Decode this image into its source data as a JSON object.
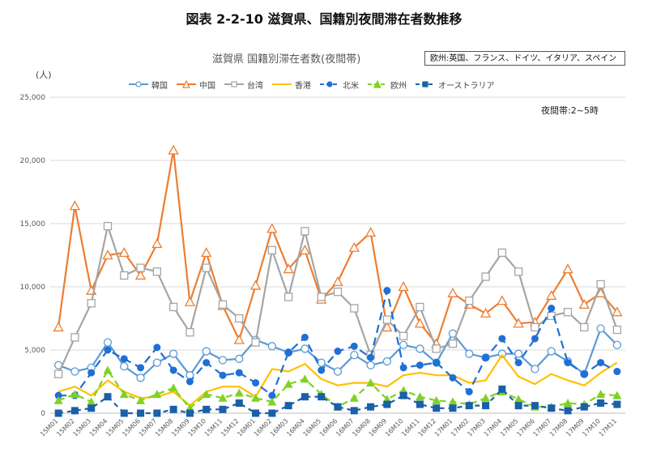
{
  "page_title": "図表 2-2-10 滋賀県、国籍別夜間滞在者数推移",
  "chart_data": {
    "type": "line",
    "title": "滋賀県 国籍別滞在者数(夜間帯)",
    "note": "欧州:英国、フランス、ドイツ、イタリア、スペイン",
    "time_note": "夜間帯:2~5時",
    "ylabel": "(人)",
    "ylim": [
      0,
      25000
    ],
    "yticks": [
      "0",
      "5,000",
      "10,000",
      "15,000",
      "20,000",
      "25,000"
    ],
    "grid": true,
    "legend_position": "top",
    "categories": [
      "15M01",
      "15M02",
      "15M03",
      "15M04",
      "15M05",
      "15M06",
      "15M07",
      "15M08",
      "15M09",
      "15M10",
      "15M11",
      "15M12",
      "16M01",
      "16M02",
      "16M03",
      "16M04",
      "16M05",
      "16M06",
      "16M07",
      "16M08",
      "16M09",
      "16M10",
      "16M11",
      "16M12",
      "17M01",
      "17M02",
      "17M03",
      "17M04",
      "17M05",
      "17M06",
      "17M07",
      "17M08",
      "17M09",
      "17M10",
      "17M11"
    ],
    "series": [
      {
        "name": "韓国",
        "color": "#5b9bd5",
        "dash": "",
        "marker": "circle-open",
        "values": [
          3800,
          3300,
          3600,
          5600,
          3700,
          2800,
          4000,
          4700,
          3000,
          4900,
          4200,
          4300,
          5800,
          5300,
          4800,
          5100,
          4000,
          3300,
          4600,
          3800,
          4100,
          5400,
          5100,
          4000,
          6300,
          4700,
          4400,
          4700,
          4700,
          3500,
          4900,
          4100,
          3100,
          6700,
          5400
        ]
      },
      {
        "name": "中国",
        "color": "#ed7d31",
        "dash": "",
        "marker": "triangle-open",
        "values": [
          6800,
          16400,
          9700,
          12500,
          12700,
          10900,
          13400,
          20800,
          8800,
          12700,
          8500,
          5800,
          10100,
          14600,
          11400,
          12900,
          9000,
          10400,
          13100,
          14300,
          6800,
          10000,
          7100,
          5500,
          9500,
          8600,
          7900,
          8900,
          7100,
          7200,
          9300,
          11400,
          8600,
          9500,
          8000
        ]
      },
      {
        "name": "台湾",
        "color": "#a5a5a5",
        "dash": "",
        "marker": "square-open",
        "values": [
          3100,
          6000,
          8700,
          14800,
          10900,
          11500,
          11200,
          8400,
          6400,
          11500,
          8600,
          7500,
          5600,
          12900,
          9200,
          14400,
          9200,
          9600,
          8300,
          4600,
          7400,
          6100,
          8400,
          5100,
          5500,
          8900,
          10800,
          12700,
          11200,
          6800,
          7700,
          8000,
          6800,
          10200,
          6600
        ]
      },
      {
        "name": "香港",
        "color": "#ffc000",
        "dash": "",
        "marker": "none",
        "values": [
          1700,
          2100,
          1400,
          2600,
          1700,
          1200,
          1300,
          1700,
          600,
          1700,
          2100,
          2100,
          1300,
          3500,
          3300,
          3900,
          2700,
          2200,
          2400,
          2400,
          2100,
          3000,
          3200,
          3000,
          3000,
          2400,
          2600,
          4600,
          2900,
          2300,
          3100,
          2600,
          2200,
          3200,
          4000
        ]
      },
      {
        "name": "北米",
        "color": "#1f6fd6",
        "dash": "10,6",
        "marker": "circle",
        "values": [
          1400,
          1400,
          3200,
          5000,
          4300,
          3600,
          5200,
          3400,
          2500,
          4000,
          3000,
          3200,
          2400,
          1400,
          4800,
          6000,
          3400,
          4900,
          5300,
          4400,
          9700,
          3600,
          3800,
          4000,
          2800,
          1700,
          4400,
          5900,
          4000,
          5900,
          8300,
          4000,
          3100,
          4000,
          3300
        ]
      },
      {
        "name": "欧州",
        "color": "#7ed321",
        "dash": "8,5",
        "marker": "triangle",
        "values": [
          1000,
          1500,
          900,
          3400,
          1500,
          1000,
          1500,
          2000,
          400,
          1500,
          1200,
          1600,
          1200,
          900,
          2300,
          2700,
          1500,
          500,
          1200,
          2400,
          1100,
          1800,
          1300,
          1000,
          900,
          700,
          1200,
          1700,
          1100,
          500,
          500,
          800,
          700,
          1500,
          1400
        ]
      },
      {
        "name": "オーストラリア",
        "color": "#1a5fa8",
        "dash": "6,5",
        "marker": "square",
        "values": [
          0,
          200,
          400,
          1300,
          0,
          0,
          0,
          300,
          0,
          300,
          300,
          800,
          0,
          0,
          600,
          1300,
          1300,
          500,
          200,
          500,
          700,
          1400,
          700,
          400,
          400,
          600,
          600,
          1900,
          600,
          600,
          400,
          200,
          500,
          800,
          700
        ]
      }
    ]
  }
}
